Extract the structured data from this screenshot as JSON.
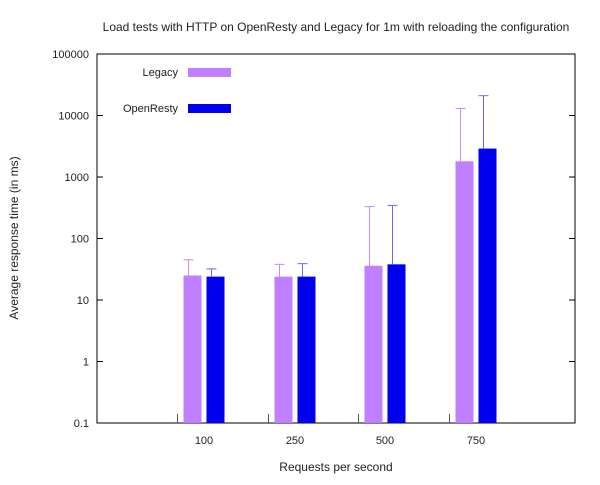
{
  "chart_data": {
    "type": "bar",
    "title": "Load tests with HTTP on OpenResty and Legacy for 1m with reloading the configuration",
    "xlabel": "Requests per second",
    "ylabel": "Average response time (in ms)",
    "yscale": "log",
    "ylim": [
      0.1,
      100000
    ],
    "yticks": [
      0.1,
      1,
      10,
      100,
      1000,
      10000,
      100000
    ],
    "ytick_labels": [
      "0.1",
      "1",
      "10",
      "100",
      "1000",
      "10000",
      "100000"
    ],
    "categories": [
      "100",
      "250",
      "500",
      "750"
    ],
    "legend_position": "top-left",
    "series": [
      {
        "name": "Legacy",
        "color": "#bf7fff",
        "error_color": "#c58cf5",
        "values": [
          25,
          24,
          36,
          1800
        ],
        "error_upper": [
          45,
          38,
          330,
          13000
        ]
      },
      {
        "name": "OpenResty",
        "color": "#0000ee",
        "error_color": "#6a6ae8",
        "values": [
          24,
          24,
          38,
          2900
        ],
        "error_upper": [
          32,
          39,
          345,
          21000
        ]
      }
    ]
  }
}
